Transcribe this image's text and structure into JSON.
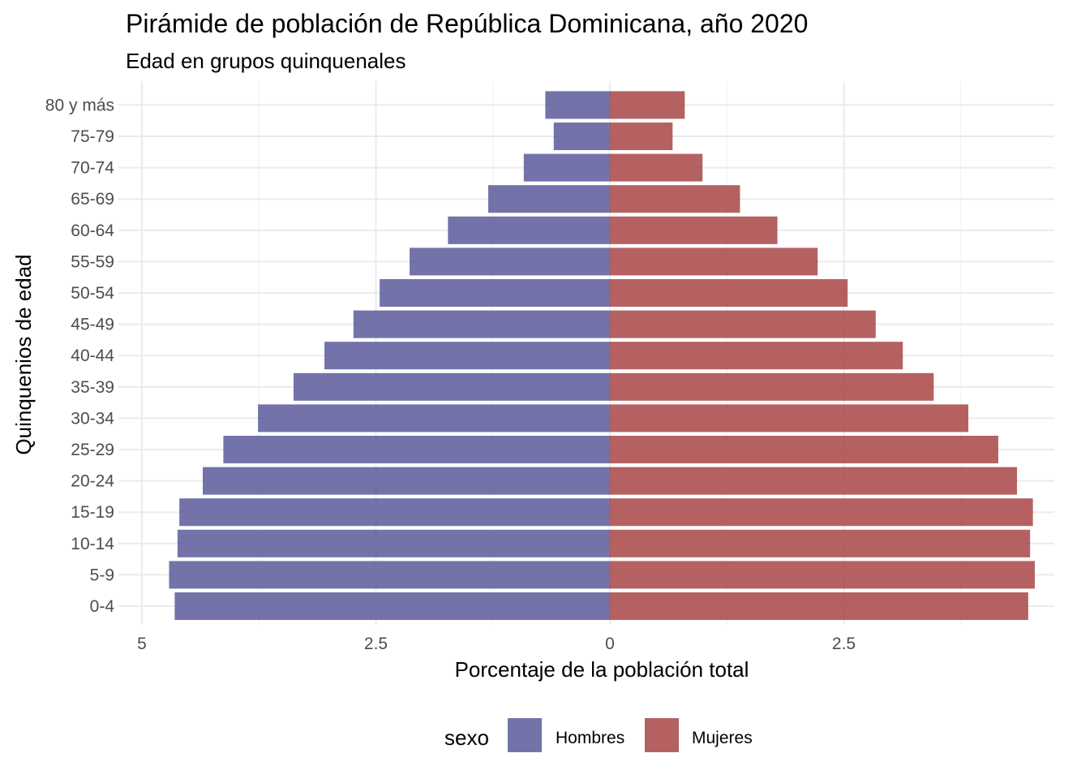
{
  "chart_data": {
    "type": "bar",
    "orientation": "horizontal",
    "title": "Pirámide de población de República Dominicana, año 2020",
    "subtitle": "Edad en grupos quinquenales",
    "xlabel": "Porcentaje de la población total",
    "ylabel": "Quinquenios de edad",
    "categories": [
      "0-4",
      "5-9",
      "10-14",
      "15-19",
      "20-24",
      "25-29",
      "30-34",
      "35-39",
      "40-44",
      "45-49",
      "50-54",
      "55-59",
      "60-64",
      "65-69",
      "70-74",
      "75-79",
      "80 y más"
    ],
    "series": [
      {
        "name": "Hombres",
        "color": "#5B5B9B",
        "values": [
          4.65,
          4.71,
          4.62,
          4.6,
          4.35,
          4.13,
          3.76,
          3.38,
          3.05,
          2.74,
          2.46,
          2.14,
          1.73,
          1.3,
          0.92,
          0.6,
          0.69
        ]
      },
      {
        "name": "Mujeres",
        "color": "#A84545",
        "values": [
          4.47,
          4.54,
          4.49,
          4.52,
          4.35,
          4.15,
          3.83,
          3.46,
          3.13,
          2.84,
          2.54,
          2.22,
          1.79,
          1.39,
          0.99,
          0.67,
          0.8
        ]
      }
    ],
    "xlim": [
      -5,
      4.6
    ],
    "xticks": [
      {
        "value": -5,
        "label": "5"
      },
      {
        "value": -2.5,
        "label": "2.5"
      },
      {
        "value": 0,
        "label": "0"
      },
      {
        "value": 2.5,
        "label": "2.5"
      }
    ],
    "grid": true,
    "legend": {
      "title": "sexo",
      "position": "bottom"
    }
  }
}
